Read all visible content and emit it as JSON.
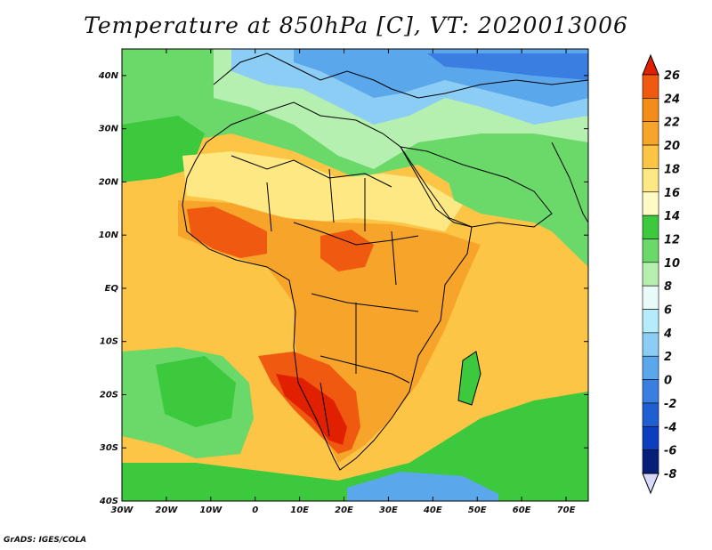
{
  "title": "Temperature at 850hPa [C], VT: 2020013006",
  "footer": "GrADS: IGES/COLA",
  "axes": {
    "lon_labels": [
      "30W",
      "20W",
      "10W",
      "0",
      "10E",
      "20E",
      "30E",
      "40E",
      "50E",
      "60E",
      "70E"
    ],
    "lat_labels": [
      "40N",
      "30N",
      "20N",
      "10N",
      "EQ",
      "10S",
      "20S",
      "30S",
      "40S"
    ]
  },
  "colorbar": {
    "labels": [
      "26",
      "24",
      "22",
      "20",
      "18",
      "16",
      "14",
      "12",
      "10",
      "8",
      "6",
      "4",
      "2",
      "0",
      "-2",
      "-4",
      "-6",
      "-8"
    ],
    "colors": [
      "#e02000",
      "#f05a10",
      "#f48c1a",
      "#f7a52a",
      "#fcc545",
      "#fde883",
      "#fffbc5",
      "#3dc93d",
      "#6ad96a",
      "#b6f0b0",
      "#e9fbf9",
      "#b4ecfb",
      "#8ccdf5",
      "#5ba7ec",
      "#3a7ee2",
      "#1f5fd1",
      "#0c3ebd",
      "#06207a",
      "#000e55"
    ]
  },
  "map_colors": {
    "ocean_warm": "#fcc545",
    "ocean_mild": "#fde883",
    "cool_green": "#6ad96a",
    "green": "#3dc93d",
    "light_green": "#b6f0b0",
    "light_blue": "#8ccdf5",
    "blue": "#5ba7ec",
    "land_orange": "#f7a52a",
    "land_hot": "#f05a10",
    "land_vhot": "#e02000",
    "border": "#000000"
  }
}
